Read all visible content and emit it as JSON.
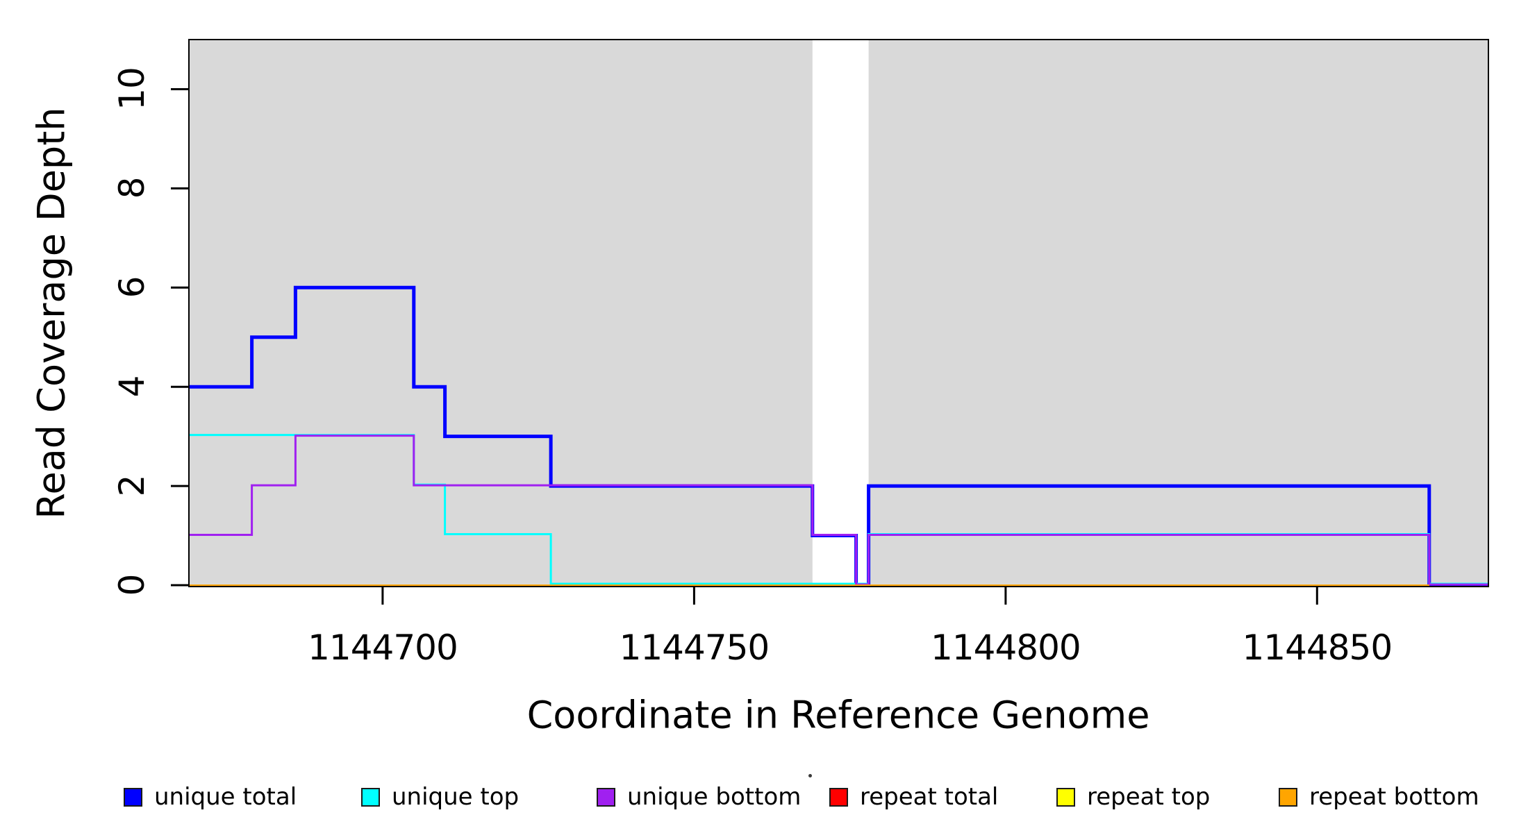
{
  "chart_data": {
    "type": "line",
    "subtype": "step-post-coverage",
    "title": "",
    "xlabel": "Coordinate in Reference Genome",
    "ylabel": "Read Coverage Depth",
    "xlim": [
      1144668.9,
      1144877.5
    ],
    "ylim": [
      0,
      11
    ],
    "grid": "off",
    "axis_color": "#000000",
    "page_background": "#ffffff",
    "plot_background": "#ffffff",
    "shaded_region_color": "#d9d9d9",
    "background_regions": [
      {
        "x0": 1144668.9,
        "x1": 1144769,
        "color": "#d9d9d9"
      },
      {
        "x0": 1144778,
        "x1": 1144877.5,
        "color": "#d9d9d9"
      }
    ],
    "white_gap_region": {
      "x0": 1144769,
      "x1": 1144778
    },
    "x_ticks": [
      1144700,
      1144750,
      1144800,
      1144850
    ],
    "x_tick_labels": [
      "1144700",
      "1144750",
      "1144800",
      "1144850"
    ],
    "y_ticks": [
      0,
      2,
      4,
      6,
      8,
      10
    ],
    "y_tick_labels": [
      "0",
      "2",
      "4",
      "6",
      "8",
      "10"
    ],
    "step": "post",
    "series": [
      {
        "name": "unique total",
        "color": "#0000ff",
        "line_width": 5,
        "points": [
          [
            1144668.9,
            4
          ],
          [
            1144679,
            5
          ],
          [
            1144686,
            6
          ],
          [
            1144705,
            4
          ],
          [
            1144710,
            3
          ],
          [
            1144727,
            2
          ],
          [
            1144769,
            1
          ],
          [
            1144776,
            0
          ],
          [
            1144778,
            2
          ],
          [
            1144868,
            0
          ],
          [
            1144877.5,
            0
          ]
        ]
      },
      {
        "name": "unique top",
        "color": "#00ffff",
        "line_width": 3,
        "points": [
          [
            1144668.9,
            3
          ],
          [
            1144705,
            2
          ],
          [
            1144710,
            1
          ],
          [
            1144727,
            0
          ],
          [
            1144778,
            1
          ],
          [
            1144868,
            0
          ],
          [
            1144877.5,
            0
          ]
        ]
      },
      {
        "name": "unique bottom",
        "color": "#a020f0",
        "line_width": 3,
        "points": [
          [
            1144668.9,
            1
          ],
          [
            1144679,
            2
          ],
          [
            1144686,
            3
          ],
          [
            1144705,
            2
          ],
          [
            1144769,
            1
          ],
          [
            1144776,
            0
          ],
          [
            1144778,
            1
          ],
          [
            1144868,
            0
          ],
          [
            1144877.5,
            0
          ]
        ]
      },
      {
        "name": "repeat total",
        "color": "#ff0000",
        "line_width": 3,
        "points": [
          [
            1144668.9,
            0
          ],
          [
            1144868,
            0
          ]
        ]
      },
      {
        "name": "repeat top",
        "color": "#ffff00",
        "line_width": 3,
        "points": [
          [
            1144668.9,
            0
          ],
          [
            1144868,
            0
          ]
        ]
      },
      {
        "name": "repeat bottom",
        "color": "#ffa500",
        "line_width": 4,
        "points": [
          [
            1144668.9,
            0
          ],
          [
            1144868,
            0
          ]
        ]
      }
    ],
    "legend": {
      "position": "bottom",
      "entries": [
        {
          "label": "unique total",
          "color": "#0000ff"
        },
        {
          "label": "unique top",
          "color": "#00ffff"
        },
        {
          "label": "unique bottom",
          "color": "#a020f0"
        },
        {
          "label": "repeat total",
          "color": "#ff0000"
        },
        {
          "label": "repeat top",
          "color": "#ffff00"
        },
        {
          "label": "repeat bottom",
          "color": "#ffa500"
        }
      ]
    }
  }
}
